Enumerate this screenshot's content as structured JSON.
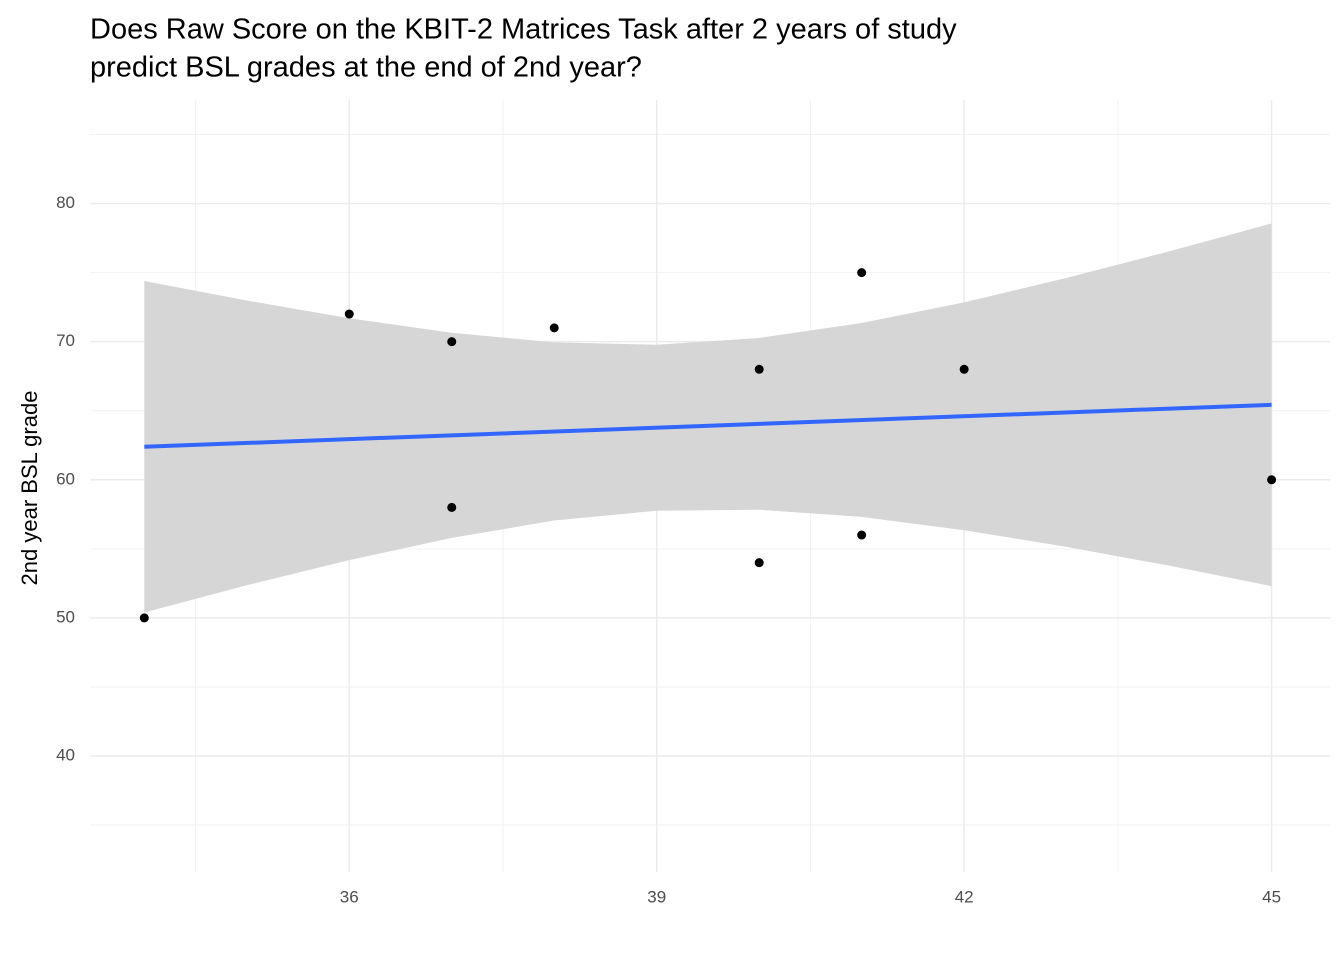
{
  "chart_data": {
    "type": "scatter",
    "title": [
      "Does Raw Score on the KBIT-2 Matrices Task after 2 years of study",
      "predict BSL grades at the end of 2nd year?"
    ],
    "y_label": "2nd year BSL grade",
    "series": [
      {
        "color": "#000000",
        "x": [
          34,
          36,
          37,
          37,
          38,
          40,
          40,
          41,
          41,
          42,
          45
        ],
        "values": [
          50,
          72,
          70,
          58,
          71,
          68,
          54,
          75,
          56,
          68,
          60
        ]
      }
    ],
    "fit": {
      "color": "#3366ff",
      "x": [
        34,
        45
      ],
      "values": [
        62.39,
        65.43
      ]
    },
    "band": {
      "color": "#d6d6d6",
      "x": [
        34,
        35,
        36,
        37,
        38,
        39,
        40,
        41,
        42,
        43,
        44,
        45
      ],
      "lower": [
        50.39,
        52.36,
        54.18,
        55.79,
        57.05,
        57.76,
        57.83,
        57.31,
        56.35,
        55.14,
        53.78,
        52.3
      ],
      "upper": [
        74.39,
        72.98,
        71.7,
        70.65,
        69.95,
        69.78,
        70.27,
        71.35,
        72.85,
        74.62,
        76.54,
        78.56
      ]
    },
    "xlim": [
      33.47,
      45.57
    ],
    "ylim": [
      31.6,
      87.5
    ],
    "xticks": [
      36,
      39,
      42,
      45
    ],
    "yticks": [
      40,
      50,
      60,
      70,
      80
    ],
    "minor_xticks": [
      34.5,
      37.5,
      40.5,
      43.5
    ],
    "minor_yticks": [
      35,
      45,
      55,
      65,
      75,
      85
    ],
    "grid": true
  }
}
